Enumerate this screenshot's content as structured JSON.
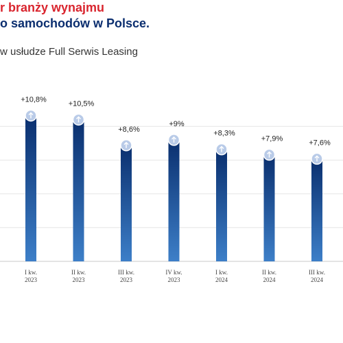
{
  "header": {
    "title_line1": "r branży wynajmu",
    "title_line2": "o samochodów w Polsce.",
    "subtitle": "w usłudze Full Serwis Leasing"
  },
  "colors": {
    "title_red": "#d9252e",
    "title_blue": "#0b2e6f",
    "subtitle": "#333333",
    "bar_top": "#0a2f6e",
    "bar_bottom": "#3d7fc8",
    "grid": "#e6e6e6",
    "axis": "#c8c8c8",
    "arrow_badge": "#b9cbe8"
  },
  "chart_data": {
    "type": "bar",
    "categories": [
      [
        "I kw.",
        "2023"
      ],
      [
        "II kw.",
        "2023"
      ],
      [
        "III kw.",
        "2023"
      ],
      [
        "IV kw.",
        "2023"
      ],
      [
        "I kw.",
        "2024"
      ],
      [
        "II kw.",
        "2024"
      ],
      [
        "III kw.",
        "2024"
      ]
    ],
    "values": [
      10.8,
      10.5,
      8.6,
      9,
      8.3,
      7.9,
      7.6
    ],
    "value_labels": [
      "+10,8%",
      "+10,5%",
      "+8,6%",
      "+9%",
      "+8,3%",
      "+7,9%",
      "+7,6%"
    ],
    "ylim": [
      0,
      12.5
    ],
    "grid": true,
    "arrow_icon": "arrow-up-icon"
  }
}
